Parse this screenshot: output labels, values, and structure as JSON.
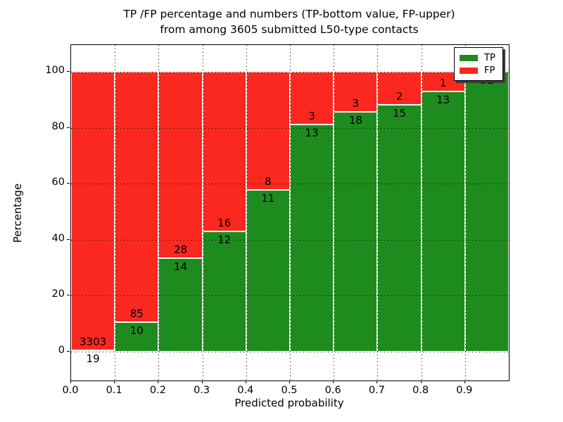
{
  "title": {
    "line1": "TP /FP percentage and numbers (TP-bottom value, FP-upper)",
    "line2": "from among 3605 submitted L50-type contacts"
  },
  "axes": {
    "xlabel": "Predicted probability",
    "ylabel": "Percentage"
  },
  "legend": {
    "entries": [
      {
        "label": "TP",
        "color": "#1e8b1e"
      },
      {
        "label": "FP",
        "color": "#fa281e"
      }
    ]
  },
  "chart_data": {
    "type": "bar",
    "stacked": true,
    "title": "TP /FP percentage and numbers (TP-bottom value, FP-upper) from among 3605 submitted L50-type contacts",
    "xlabel": "Predicted probability",
    "ylabel": "Percentage",
    "total_contacts": 3605,
    "x_tick_labels": [
      "0.0",
      "0.1",
      "0.2",
      "0.3",
      "0.4",
      "0.5",
      "0.6",
      "0.7",
      "0.8",
      "0.9"
    ],
    "y_ticks": [
      0,
      20,
      40,
      60,
      80,
      100
    ],
    "xlim": [
      0.0,
      1.0
    ],
    "ylim": [
      -10.5,
      110
    ],
    "grid": true,
    "grid_style": "dotted",
    "legend_position": "upper right",
    "series": [
      {
        "name": "TP",
        "color": "#1e8b1e"
      },
      {
        "name": "FP",
        "color": "#fa281e"
      }
    ],
    "bins": [
      {
        "range": "0.0-0.1",
        "tp": 19,
        "fp": 3303
      },
      {
        "range": "0.1-0.2",
        "tp": 10,
        "fp": 85
      },
      {
        "range": "0.2-0.3",
        "tp": 14,
        "fp": 28
      },
      {
        "range": "0.3-0.4",
        "tp": 12,
        "fp": 16
      },
      {
        "range": "0.4-0.5",
        "tp": 11,
        "fp": 8
      },
      {
        "range": "0.5-0.6",
        "tp": 13,
        "fp": 3
      },
      {
        "range": "0.6-0.7",
        "tp": 18,
        "fp": 3
      },
      {
        "range": "0.7-0.8",
        "tp": 15,
        "fp": 2
      },
      {
        "range": "0.8-0.9",
        "tp": 13,
        "fp": 1
      },
      {
        "range": "0.9-1.0",
        "tp": 31,
        "fp": 0
      }
    ],
    "annotation_note": "TP count printed just below each TP/FP boundary, FP count just above it; bar heights are TP/(TP+FP) percentages"
  }
}
